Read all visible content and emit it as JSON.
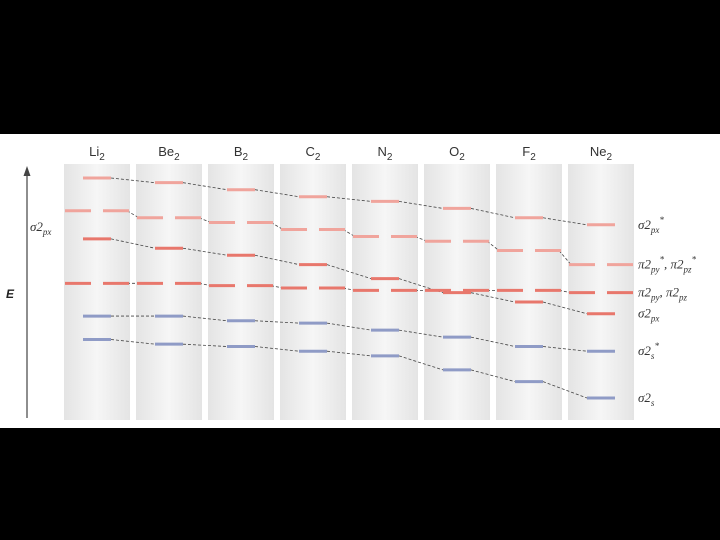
{
  "title": "",
  "energy_axis_label": "E",
  "molecules": [
    {
      "key": "Li",
      "sub": "2"
    },
    {
      "key": "Be",
      "sub": "2"
    },
    {
      "key": "B",
      "sub": "2"
    },
    {
      "key": "C",
      "sub": "2"
    },
    {
      "key": "N",
      "sub": "2"
    },
    {
      "key": "O",
      "sub": "2"
    },
    {
      "key": "F",
      "sub": "2"
    },
    {
      "key": "Ne",
      "sub": "2"
    }
  ],
  "left_label": {
    "main": "σ2",
    "sub": "px"
  },
  "orbital_labels": [
    {
      "id": "sigma2px_star",
      "main": "σ2",
      "sub": "px",
      "sup": "*"
    },
    {
      "id": "pi2p_star",
      "main": "π2",
      "sub": "py",
      "sup": "*",
      "sep": ", ",
      "main2": "π2",
      "sub2": "pz",
      "sup2": "*"
    },
    {
      "id": "pi2p",
      "main": "π2",
      "sub": "py",
      "sep": ", ",
      "main2": "π2",
      "sub2": "pz"
    },
    {
      "id": "sigma2px",
      "main": "σ2",
      "sub": "px"
    },
    {
      "id": "sigma2s_star",
      "main": "σ2",
      "sub": "s",
      "sup": "*"
    },
    {
      "id": "sigma2s",
      "main": "σ2",
      "sub": "s"
    }
  ],
  "colors": {
    "p_orbital": "#e8776c",
    "p_antibonding": "#f0a49c",
    "s_orbital": "#8f9bc6",
    "column_bg": "#eeeeee",
    "dash": "#444444"
  },
  "levels_note": "relative energy ordering read from diagram",
  "orbital_series": [
    {
      "id": "sigma2px_star",
      "kind": "p_antibonding",
      "degenerate": false,
      "energy": [
        8.6,
        8.4,
        8.1,
        7.8,
        7.6,
        7.3,
        6.9,
        6.6
      ]
    },
    {
      "id": "pi2p_star",
      "kind": "p_antibonding",
      "degenerate": true,
      "energy": [
        7.2,
        6.9,
        6.7,
        6.4,
        6.1,
        5.9,
        5.5,
        4.9
      ]
    },
    {
      "id": "sigma2px",
      "kind": "p_orbital",
      "degenerate": false,
      "energy": [
        6.0,
        5.6,
        5.3,
        4.9,
        4.3,
        3.7,
        3.3,
        2.8
      ]
    },
    {
      "id": "pi2p",
      "kind": "p_orbital",
      "degenerate": true,
      "energy": [
        4.1,
        4.1,
        4.0,
        3.9,
        3.8,
        3.8,
        3.8,
        3.7
      ]
    },
    {
      "id": "sigma2s_star",
      "kind": "s_orbital",
      "degenerate": false,
      "energy": [
        2.7,
        2.7,
        2.5,
        2.4,
        2.1,
        1.8,
        1.4,
        1.2
      ]
    },
    {
      "id": "sigma2s",
      "kind": "s_orbital",
      "degenerate": false,
      "energy": [
        1.7,
        1.5,
        1.4,
        1.2,
        1.0,
        0.4,
        -0.1,
        -0.8
      ]
    }
  ]
}
